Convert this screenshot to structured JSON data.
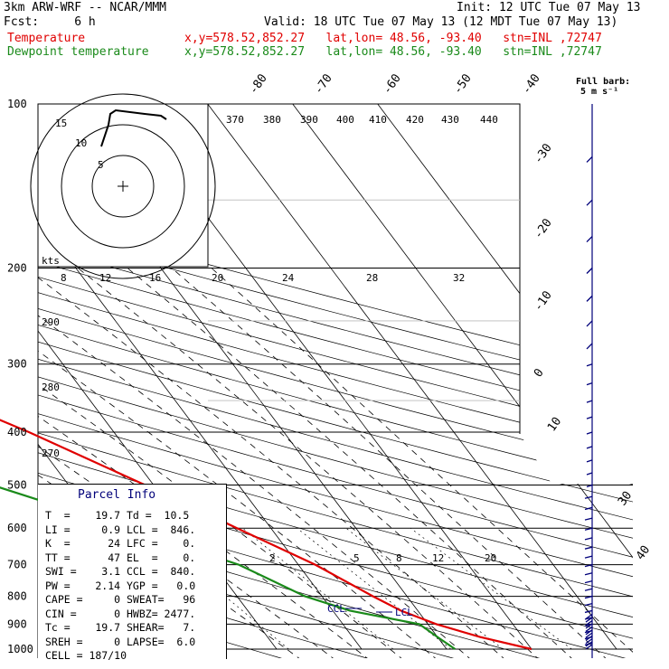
{
  "header": {
    "model": "3km ARW-WRF -- NCAR/MMM",
    "init": "Init: 12 UTC Tue 07 May 13",
    "fcst": "Fcst:     6 h",
    "valid": "Valid: 18 UTC Tue 07 May 13 (12 MDT Tue 07 May 13)",
    "temp_label": "Temperature",
    "dew_label": "Dewpoint temperature",
    "loc_info": "x,y=578.52,852.27   lat,lon= 48.56, -93.40   stn=INL ,72747"
  },
  "colors": {
    "temperature": "#e00000",
    "dewpoint": "#1a8a1a",
    "wind": "#00007a",
    "grid": "#000000"
  },
  "pressure_labels": [
    "100",
    "200",
    "300",
    "400",
    "500",
    "600",
    "700",
    "800",
    "900",
    "1000"
  ],
  "temp_top_labels": [
    "-80",
    "-70",
    "-60",
    "-50",
    "-40"
  ],
  "temp_right_labels": [
    "-30",
    "-20",
    "-10",
    "0",
    "10",
    "30",
    "40"
  ],
  "theta_labels": [
    "370",
    "380",
    "390",
    "400",
    "410",
    "420",
    "430",
    "440"
  ],
  "mixing_labels": [
    "8",
    "12",
    "16",
    "20",
    "24",
    "28",
    "32"
  ],
  "mixing_low_labels": [
    "2",
    "5",
    "8",
    "12",
    "20"
  ],
  "theta_left_labels": [
    "290",
    "280",
    "270"
  ],
  "hodograph": {
    "ring_labels": [
      "15",
      "10",
      "5"
    ],
    "units": "kts"
  },
  "wind_barb_legend": {
    "title": "Full barb:",
    "value": "5 m s⁻¹"
  },
  "lcl_label": "LCL",
  "ccl_label": "CCL",
  "parcel_info": {
    "title": "Parcel Info",
    "rows": [
      "T  =    19.7 Td =  10.5",
      "LI =     0.9 LCL =  846.",
      "K  =      24 LFC =    0.",
      "TT =      47 EL  =    0.",
      "SWI =    3.1 CCL =  840.",
      "PW =    2.14 YGP =   0.0",
      "CAPE =     0 SWEAT=   96",
      "CIN =      0 HWBZ= 2477.",
      "Tc =    19.7 SHEAR=   7.",
      "SREH =     0 LAPSE=  6.0",
      "CELL = 187/10"
    ]
  },
  "chart_data": {
    "type": "line",
    "title": "",
    "xlabel": "",
    "ylabel": "",
    "y_axis": "pressure (hPa), log scale",
    "ylim": [
      1000,
      100
    ],
    "series": [
      {
        "name": "Temperature",
        "color": "#e00000",
        "points": [
          [
            1000,
            20
          ],
          [
            950,
            15
          ],
          [
            900,
            11
          ],
          [
            850,
            8
          ],
          [
            800,
            6
          ],
          [
            700,
            2
          ],
          [
            600,
            -4
          ],
          [
            500,
            -11
          ],
          [
            400,
            -20
          ],
          [
            300,
            -33
          ],
          [
            250,
            -41
          ],
          [
            200,
            -50
          ],
          [
            150,
            -55
          ],
          [
            100,
            -58
          ]
        ]
      },
      {
        "name": "Dewpoint temperature",
        "color": "#1a8a1a",
        "points": [
          [
            1000,
            11
          ],
          [
            950,
            10
          ],
          [
            900,
            9
          ],
          [
            850,
            2
          ],
          [
            800,
            -2
          ],
          [
            700,
            -7
          ],
          [
            600,
            -17
          ],
          [
            500,
            -29
          ],
          [
            400,
            -40
          ],
          [
            350,
            -39
          ],
          [
            300,
            -52
          ],
          [
            250,
            -60
          ],
          [
            200,
            -68
          ],
          [
            150,
            -70
          ],
          [
            100,
            -72
          ]
        ]
      }
    ]
  }
}
